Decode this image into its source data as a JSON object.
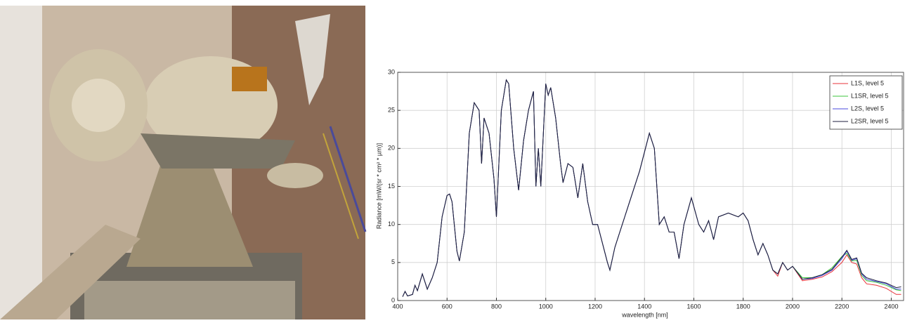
{
  "chart_data": {
    "type": "line",
    "xlabel": "wavelength [nm]",
    "ylabel": "Radiance [mW/(sr * cm² * µm)]",
    "x": [
      420,
      430,
      440,
      460,
      470,
      480,
      500,
      520,
      540,
      560,
      580,
      600,
      610,
      620,
      640,
      650,
      670,
      690,
      710,
      730,
      740,
      750,
      770,
      790,
      800,
      820,
      840,
      850,
      870,
      890,
      910,
      930,
      950,
      960,
      970,
      980,
      1000,
      1010,
      1020,
      1040,
      1060,
      1070,
      1090,
      1110,
      1130,
      1150,
      1170,
      1190,
      1210,
      1230,
      1250,
      1260,
      1280,
      1300,
      1340,
      1380,
      1420,
      1440,
      1460,
      1480,
      1500,
      1520,
      1540,
      1560,
      1590,
      1620,
      1640,
      1660,
      1680,
      1700,
      1740,
      1780,
      1800,
      1820,
      1840,
      1860,
      1880,
      1900,
      1920,
      1940,
      1960,
      1980,
      2000,
      2040,
      2080,
      2120,
      2160,
      2200,
      2220,
      2240,
      2260,
      2280,
      2300,
      2340,
      2380,
      2420,
      2440
    ],
    "series": [
      {
        "name": "L1S, level 5",
        "color": "#e8333a",
        "values": [
          0.5,
          1.2,
          0.6,
          0.8,
          2,
          1.3,
          3.5,
          1.5,
          3,
          5,
          11,
          13.8,
          14,
          13,
          6.5,
          5.2,
          9,
          22,
          26,
          25,
          18,
          24,
          22,
          16,
          11,
          25,
          29,
          28.5,
          20,
          14.5,
          21,
          25,
          27.5,
          15,
          20,
          15,
          28.5,
          27,
          28,
          24,
          18,
          15.5,
          18,
          17.5,
          13.5,
          18,
          13,
          10,
          10,
          7.5,
          5,
          4,
          7,
          9,
          13,
          17,
          22,
          20,
          10,
          11,
          9,
          9,
          5.5,
          10,
          13.5,
          10,
          9,
          10.5,
          8,
          11,
          11.5,
          11,
          11.5,
          10.5,
          8,
          6,
          7.5,
          6,
          4,
          3.2,
          5,
          4,
          4.5,
          2.6,
          2.8,
          3.1,
          3.8,
          5,
          6,
          5,
          4.8,
          3,
          2.2,
          2,
          1.6,
          0.8,
          0.8
        ]
      },
      {
        "name": "L1SR, level 5",
        "color": "#3cc43c",
        "values": [
          0.5,
          1.2,
          0.6,
          0.8,
          2,
          1.3,
          3.5,
          1.5,
          3,
          5,
          11,
          13.8,
          14,
          13,
          6.5,
          5.2,
          9,
          22,
          26,
          25,
          18,
          24,
          22,
          16,
          11,
          25,
          29,
          28.5,
          20,
          14.5,
          21,
          25,
          27.5,
          15,
          20,
          15,
          28.5,
          27,
          28,
          24,
          18,
          15.5,
          18,
          17.5,
          13.5,
          18,
          13,
          10,
          10,
          7.5,
          5,
          4,
          7,
          9,
          13,
          17,
          22,
          20,
          10,
          11,
          9,
          9,
          5.5,
          10,
          13.5,
          10,
          9,
          10.5,
          8,
          11,
          11.5,
          11,
          11.5,
          10.5,
          8,
          6,
          7.5,
          6,
          4,
          3.5,
          5,
          4,
          4.5,
          3,
          3,
          3.4,
          4.3,
          5.8,
          6.2,
          5.2,
          5.3,
          3.3,
          2.6,
          2.4,
          2,
          1.4,
          1.3
        ]
      },
      {
        "name": "L2S, level 5",
        "color": "#4a4adf",
        "values": [
          0.5,
          1.2,
          0.6,
          0.8,
          2,
          1.3,
          3.5,
          1.5,
          3,
          5,
          11,
          13.8,
          14,
          13,
          6.5,
          5.2,
          9,
          22,
          26,
          25,
          18,
          24,
          22,
          16,
          11,
          25,
          29,
          28.5,
          20,
          14.5,
          21,
          25,
          27.5,
          15,
          20,
          15,
          28.5,
          27,
          28,
          24,
          18,
          15.5,
          18,
          17.5,
          13.5,
          18,
          13,
          10,
          10,
          7.5,
          5,
          4,
          7,
          9,
          13,
          17,
          22,
          20,
          10,
          11,
          9,
          9,
          5.5,
          10,
          13.5,
          10,
          9,
          10.5,
          8,
          11,
          11.5,
          11,
          11.5,
          10.5,
          8,
          6,
          7.5,
          6,
          4,
          3.5,
          5,
          4,
          4.5,
          2.8,
          2.9,
          3.3,
          4,
          5.5,
          6.5,
          5.3,
          5.5,
          3.5,
          2.8,
          2.5,
          2.2,
          1.5,
          1.5
        ]
      },
      {
        "name": "L2SR, level 5",
        "color": "#1e1e3c",
        "values": [
          0.5,
          1.2,
          0.6,
          0.8,
          2,
          1.3,
          3.5,
          1.5,
          3,
          5,
          11,
          13.8,
          14,
          13,
          6.5,
          5.2,
          9,
          22,
          26,
          25,
          18,
          24,
          22,
          16,
          11,
          25,
          29,
          28.5,
          20,
          14.5,
          21,
          25,
          27.5,
          15,
          20,
          15,
          28.5,
          27,
          28,
          24,
          18,
          15.5,
          18,
          17.5,
          13.5,
          18,
          13,
          10,
          10,
          7.5,
          5,
          4,
          7,
          9,
          13,
          17,
          22,
          20,
          10,
          11,
          9,
          9,
          5.5,
          10,
          13.5,
          10,
          9,
          10.5,
          8,
          11,
          11.5,
          11,
          11.5,
          10.5,
          8,
          6,
          7.5,
          6,
          4,
          3.5,
          5,
          4,
          4.5,
          2.8,
          3,
          3.4,
          4.1,
          5.7,
          6.6,
          5.4,
          5.6,
          3.6,
          3,
          2.6,
          2.3,
          1.7,
          1.8
        ]
      }
    ],
    "xlim": [
      400,
      2450
    ],
    "xticks": [
      400,
      600,
      800,
      1000,
      1200,
      1400,
      1600,
      1800,
      2000,
      2200,
      2400
    ],
    "ylim": [
      0,
      30
    ],
    "yticks": [
      0,
      5,
      10,
      15,
      20,
      25,
      30
    ],
    "grid": true,
    "legend": "upper right"
  }
}
